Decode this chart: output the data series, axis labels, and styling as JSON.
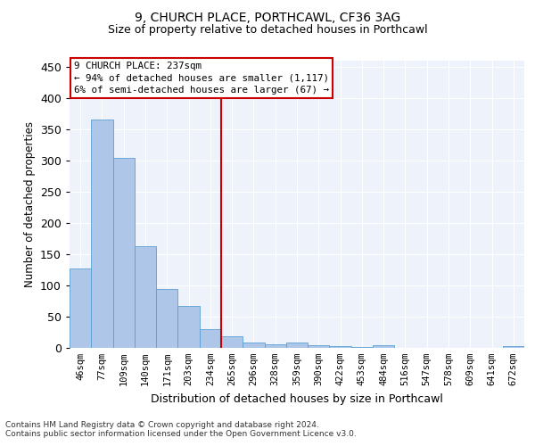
{
  "title1": "9, CHURCH PLACE, PORTHCAWL, CF36 3AG",
  "title2": "Size of property relative to detached houses in Porthcawl",
  "xlabel": "Distribution of detached houses by size in Porthcawl",
  "ylabel": "Number of detached properties",
  "bar_labels": [
    "46sqm",
    "77sqm",
    "109sqm",
    "140sqm",
    "171sqm",
    "203sqm",
    "234sqm",
    "265sqm",
    "296sqm",
    "328sqm",
    "359sqm",
    "390sqm",
    "422sqm",
    "453sqm",
    "484sqm",
    "516sqm",
    "547sqm",
    "578sqm",
    "609sqm",
    "641sqm",
    "672sqm"
  ],
  "bar_values": [
    127,
    365,
    304,
    163,
    94,
    67,
    30,
    18,
    8,
    6,
    8,
    4,
    3,
    1,
    4,
    0,
    0,
    0,
    0,
    0,
    3
  ],
  "bar_color": "#aec6e8",
  "bar_edge_color": "#5a9fd4",
  "vline_x": 6.5,
  "vline_color": "#cc0000",
  "ylim": [
    0,
    460
  ],
  "yticks": [
    0,
    50,
    100,
    150,
    200,
    250,
    300,
    350,
    400,
    450
  ],
  "annotation_box_text": "9 CHURCH PLACE: 237sqm\n← 94% of detached houses are smaller (1,117)\n6% of semi-detached houses are larger (67) →",
  "annotation_box_color": "#cc0000",
  "footnote1": "Contains HM Land Registry data © Crown copyright and database right 2024.",
  "footnote2": "Contains public sector information licensed under the Open Government Licence v3.0.",
  "bg_color": "#eef2fb"
}
